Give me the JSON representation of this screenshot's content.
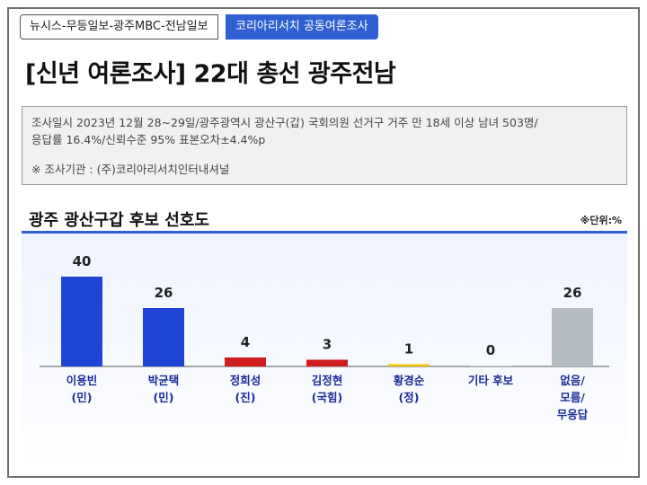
{
  "header": {
    "source_tag": "뉴시스-무등일보-광주MBC-전남일보",
    "joint_tag": "코리아리서치 공동여론조사",
    "headline": "[신년 여론조사] 22대 총선 광주전남"
  },
  "info": {
    "line1": "조사일시 2023년 12월 28~29일/광주광역시 광산구(갑) 국회의원 선거구 거주 만 18세 이상 남녀 503명/",
    "line2": "응답률 16.4%/신뢰수준 95% 표본오차±4.4%p",
    "source": "※ 조사기관 : (주)코리아리서치인터내셔널"
  },
  "chart_data": {
    "type": "bar",
    "title": "광주 광산구갑 후보 선호도",
    "unit": "※단위:%",
    "categories": [
      [
        "이용빈",
        "(민)"
      ],
      [
        "박균택",
        "(민)"
      ],
      [
        "정희성",
        "(진)"
      ],
      [
        "김정현",
        "(국힘)"
      ],
      [
        "황경순",
        "(정)"
      ],
      [
        "기타 후보"
      ],
      [
        "없음/",
        "모름/",
        "무응답"
      ]
    ],
    "values": [
      40,
      26,
      4,
      3,
      1,
      0,
      26
    ],
    "colors": [
      "#1f45d6",
      "#1f45d6",
      "#d11f1f",
      "#d11f1f",
      "#f2c500",
      "#cccccc",
      "#b4bcc2"
    ],
    "ylim": [
      0,
      40
    ]
  }
}
